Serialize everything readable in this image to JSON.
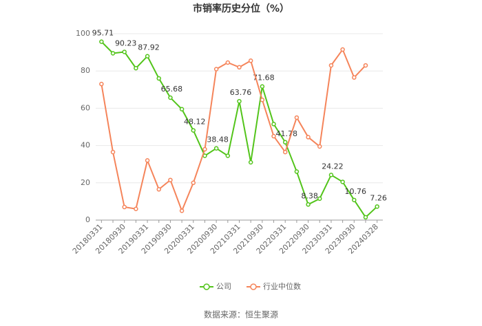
{
  "chart_data": {
    "type": "line",
    "title": "市销率历史分位（%）",
    "categories": [
      "20180331",
      null,
      "20180930",
      null,
      "20190331",
      null,
      "20190930",
      null,
      "20200331",
      null,
      "20200930",
      null,
      "20210331",
      null,
      "20210930",
      null,
      "20220331",
      null,
      "20220930",
      null,
      "20230331",
      null,
      "20230930",
      null,
      "20240328"
    ],
    "series": [
      {
        "name": "公司",
        "color": "#52c41a",
        "values": [
          95.71,
          89.5,
          90.23,
          81.5,
          87.92,
          76,
          65.68,
          59.5,
          48.12,
          34.5,
          38.48,
          34.5,
          63.76,
          31,
          71.68,
          51.5,
          41.78,
          26,
          8.38,
          11.5,
          24.22,
          20.5,
          10.76,
          1.5,
          7.26
        ],
        "value_labels": [
          "95.71",
          null,
          "90.23",
          null,
          "87.92",
          null,
          "65.68",
          null,
          "48.12",
          null,
          "38.48",
          null,
          "63.76",
          null,
          "71.68",
          null,
          "41.78",
          null,
          "8.38",
          null,
          "24.22",
          null,
          "10.76",
          null,
          "7.26"
        ]
      },
      {
        "name": "行业中位数",
        "color": "#f5845a",
        "values": [
          73,
          36.5,
          7,
          6,
          32,
          16.5,
          21.5,
          5,
          20,
          38,
          81,
          84.5,
          82,
          85.5,
          64.5,
          45,
          36.5,
          55,
          44.5,
          39.5,
          83,
          91.5,
          76.5,
          83,
          null
        ]
      }
    ],
    "ylim": [
      0,
      100
    ],
    "yticks": [
      0,
      20,
      40,
      60,
      80,
      100
    ],
    "grid": true,
    "source": "数据来源：恒生聚源"
  }
}
